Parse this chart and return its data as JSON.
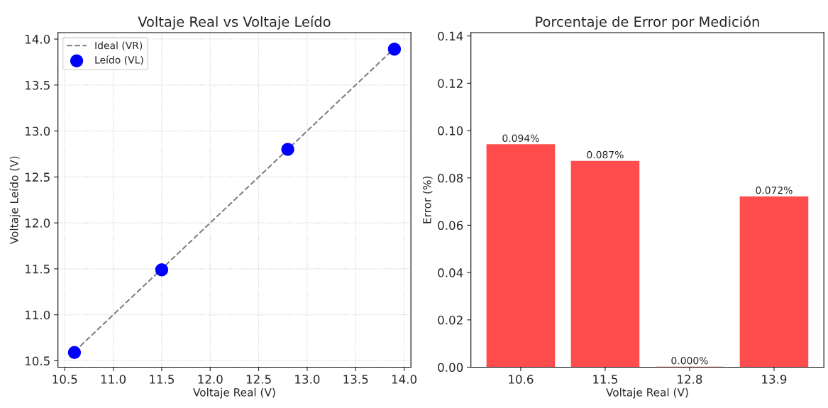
{
  "chart_data": [
    {
      "type": "scatter",
      "title": "Voltaje Real vs Voltaje Leído",
      "xlabel": "Voltaje Real (V)",
      "ylabel": "Voltaje Leído (V)",
      "x": [
        10.6,
        11.5,
        12.8,
        13.9
      ],
      "series": [
        {
          "name": "Ideal (VR)",
          "type": "line",
          "color": "#808080",
          "line_style": "dashed",
          "marker": "none",
          "values": [
            10.6,
            11.5,
            12.8,
            13.9
          ]
        },
        {
          "name": "Leído (VL)",
          "type": "scatter",
          "color": "#0000ff",
          "marker": "circle",
          "values": [
            10.59,
            11.49,
            12.8,
            13.89
          ]
        }
      ],
      "xlim": [
        10.43,
        14.07
      ],
      "ylim": [
        10.43,
        14.07
      ],
      "xticks": [
        {
          "value": 10.5,
          "label": "10.5"
        },
        {
          "value": 11.0,
          "label": "11.0"
        },
        {
          "value": 11.5,
          "label": "11.5"
        },
        {
          "value": 12.0,
          "label": "12.0"
        },
        {
          "value": 12.5,
          "label": "12.5"
        },
        {
          "value": 13.0,
          "label": "13.0"
        },
        {
          "value": 13.5,
          "label": "13.5"
        },
        {
          "value": 14.0,
          "label": "14.0"
        }
      ],
      "yticks": [
        {
          "value": 10.5,
          "label": "10.5"
        },
        {
          "value": 11.0,
          "label": "11.0"
        },
        {
          "value": 11.5,
          "label": "11.5"
        },
        {
          "value": 12.0,
          "label": "12.0"
        },
        {
          "value": 12.5,
          "label": "12.5"
        },
        {
          "value": 13.0,
          "label": "13.0"
        },
        {
          "value": 13.5,
          "label": "13.5"
        },
        {
          "value": 14.0,
          "label": "14.0"
        }
      ],
      "grid": true,
      "legend": "top left"
    },
    {
      "type": "bar",
      "title": "Porcentaje de Error por Medición",
      "xlabel": "Voltaje Real (V)",
      "ylabel": "Error (%)",
      "categories": [
        "10.6",
        "11.5",
        "12.8",
        "13.9"
      ],
      "values": [
        0.094,
        0.087,
        0.0,
        0.072
      ],
      "color": "#ff4c4c",
      "value_labels": [
        "0.094%",
        "0.087%",
        "0.000%",
        "0.072%"
      ],
      "ylim": [
        0,
        0.1414
      ],
      "yticks": [
        {
          "value": 0,
          "label": "0.00"
        },
        {
          "value": 0.02,
          "label": "0.02"
        },
        {
          "value": 0.04,
          "label": "0.04"
        },
        {
          "value": 0.06,
          "label": "0.06"
        },
        {
          "value": 0.08,
          "label": "0.08"
        },
        {
          "value": 0.1,
          "label": "0.10"
        },
        {
          "value": 0.12,
          "label": "0.12"
        },
        {
          "value": 0.14,
          "label": "0.14"
        }
      ],
      "grid": false
    }
  ]
}
